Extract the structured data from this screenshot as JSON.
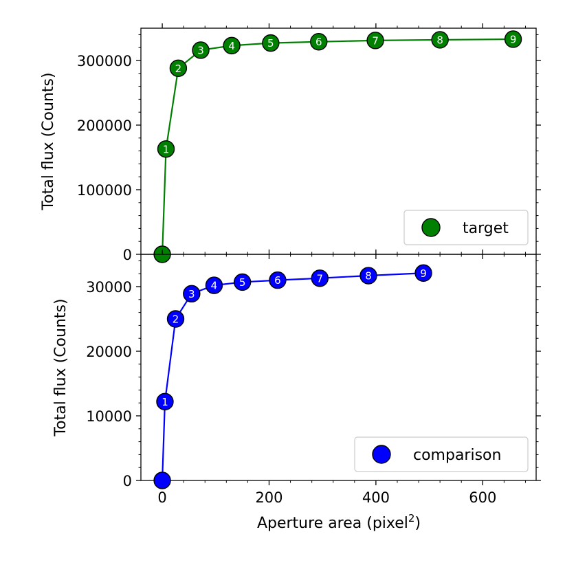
{
  "chart_data": [
    {
      "type": "line",
      "panel": "top",
      "ylabel": "Total flux (Counts)",
      "xlim": [
        -40,
        700
      ],
      "ylim": [
        0,
        350000
      ],
      "yticks": [
        0,
        100000,
        200000,
        300000
      ],
      "ytick_labels": [
        "0",
        "100000",
        "200000",
        "300000"
      ],
      "grid": false,
      "legend_position": "lower-right",
      "series": [
        {
          "name": "target",
          "color": "#008000",
          "x": [
            0,
            7,
            30,
            72,
            130,
            203,
            293,
            399,
            520,
            657
          ],
          "y": [
            0,
            163000,
            288000,
            316000,
            323000,
            327000,
            329000,
            331000,
            332000,
            333000
          ],
          "point_labels": [
            "",
            "1",
            "2",
            "3",
            "4",
            "5",
            "6",
            "7",
            "8",
            "9"
          ]
        }
      ]
    },
    {
      "type": "line",
      "panel": "bottom",
      "xlabel_main": "Aperture area (pixel",
      "xlabel_sup": "2",
      "xlabel_end": ")",
      "ylabel": "Total flux (Counts)",
      "xlim": [
        -40,
        700
      ],
      "ylim": [
        0,
        35000
      ],
      "xticks": [
        0,
        200,
        400,
        600
      ],
      "xtick_labels": [
        "0",
        "200",
        "400",
        "600"
      ],
      "yticks": [
        0,
        10000,
        20000,
        30000
      ],
      "ytick_labels": [
        "0",
        "10000",
        "20000",
        "30000"
      ],
      "grid": false,
      "legend_position": "lower-right",
      "series": [
        {
          "name": "comparison",
          "color": "#0000ff",
          "x": [
            0,
            5,
            25,
            55,
            97,
            150,
            216,
            295,
            386,
            489
          ],
          "y": [
            0,
            12200,
            25000,
            28900,
            30200,
            30700,
            31000,
            31300,
            31700,
            32100
          ],
          "point_labels": [
            "",
            "1",
            "2",
            "3",
            "4",
            "5",
            "6",
            "7",
            "8",
            "9"
          ]
        }
      ]
    }
  ]
}
